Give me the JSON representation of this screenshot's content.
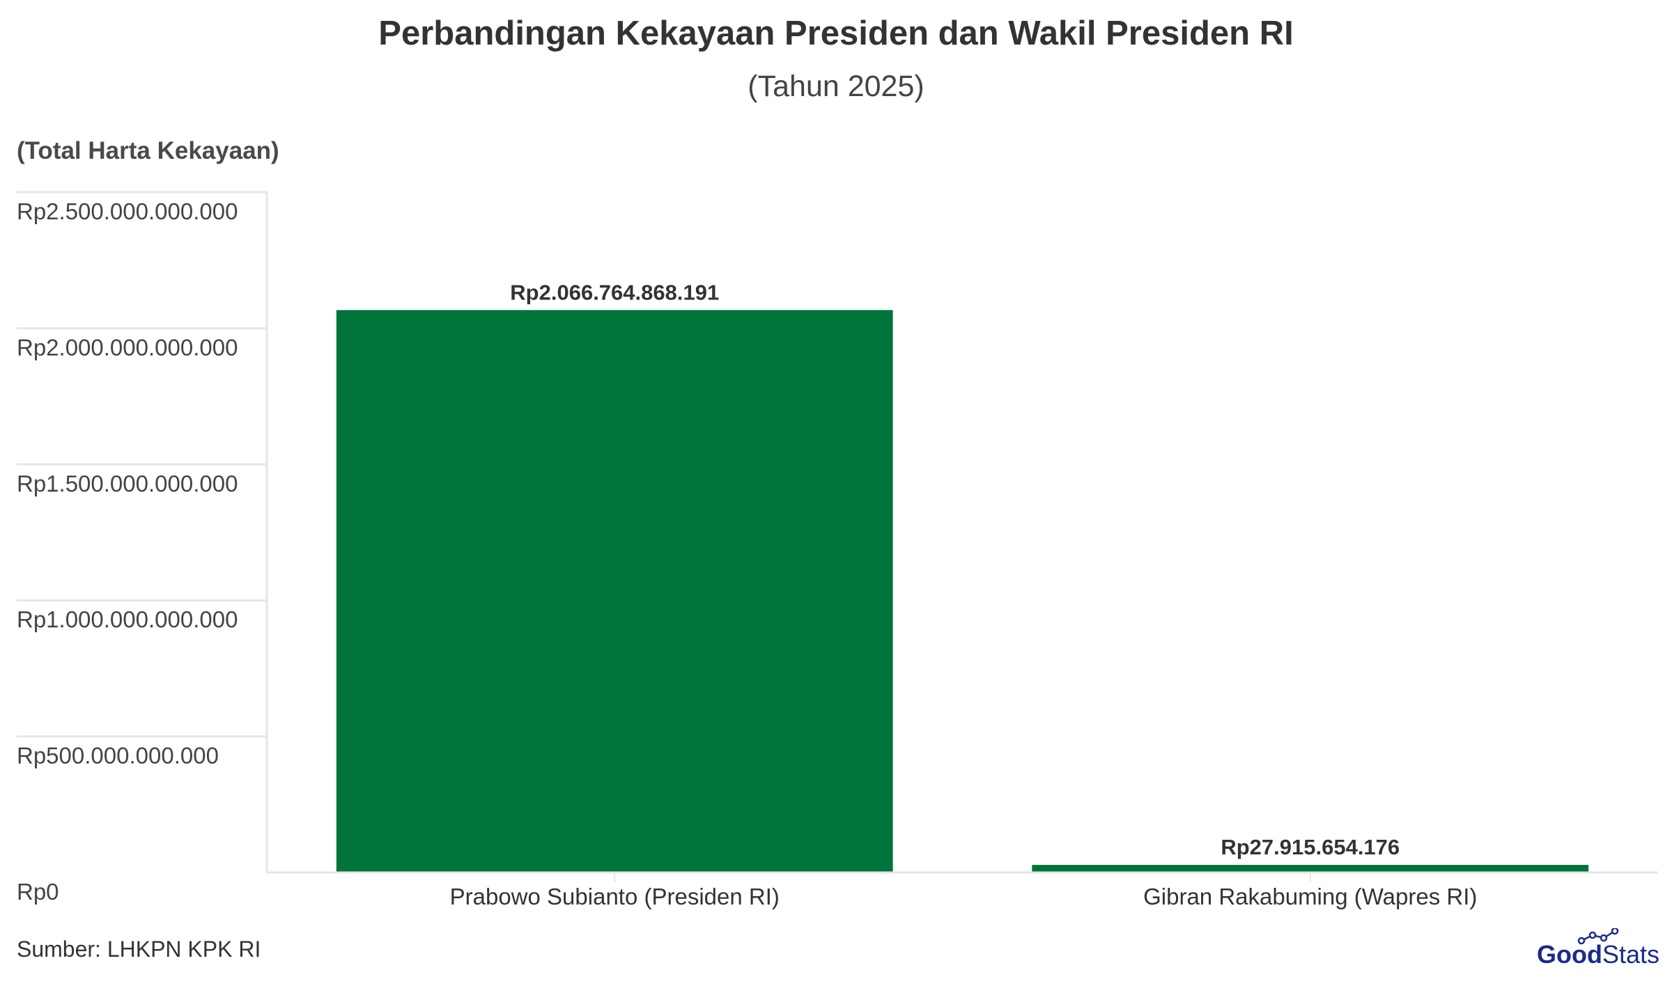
{
  "chart_data": {
    "type": "bar",
    "title": "Perbandingan Kekayaan Presiden dan Wakil Presiden RI",
    "subtitle": "(Tahun 2025)",
    "ylabel": "(Total Harta Kekayaan)",
    "xlabel": "",
    "categories": [
      "Prabowo Subianto (Presiden RI)",
      "Gibran Rakabuming (Wapres RI)"
    ],
    "values": [
      2066764868191,
      27915654176
    ],
    "value_labels": [
      "Rp2.066.764.868.191",
      "Rp27.915.654.176"
    ],
    "ylim": [
      0,
      2500000000000
    ],
    "yticks": [
      0,
      500000000000,
      1000000000000,
      1500000000000,
      2000000000000,
      2500000000000
    ],
    "ytick_labels": [
      "Rp0",
      "Rp500.000.000.000",
      "Rp1.000.000.000.000",
      "Rp1.500.000.000.000",
      "Rp2.000.000.000.000",
      "Rp2.500.000.000.000"
    ],
    "grid": true,
    "bar_color": "#00743a",
    "source": "Sumber: LHKPN KPK RI"
  },
  "branding": {
    "logo_text_bold": "Good",
    "logo_text_light": "Stats",
    "logo_color": "#1b2a8c"
  }
}
